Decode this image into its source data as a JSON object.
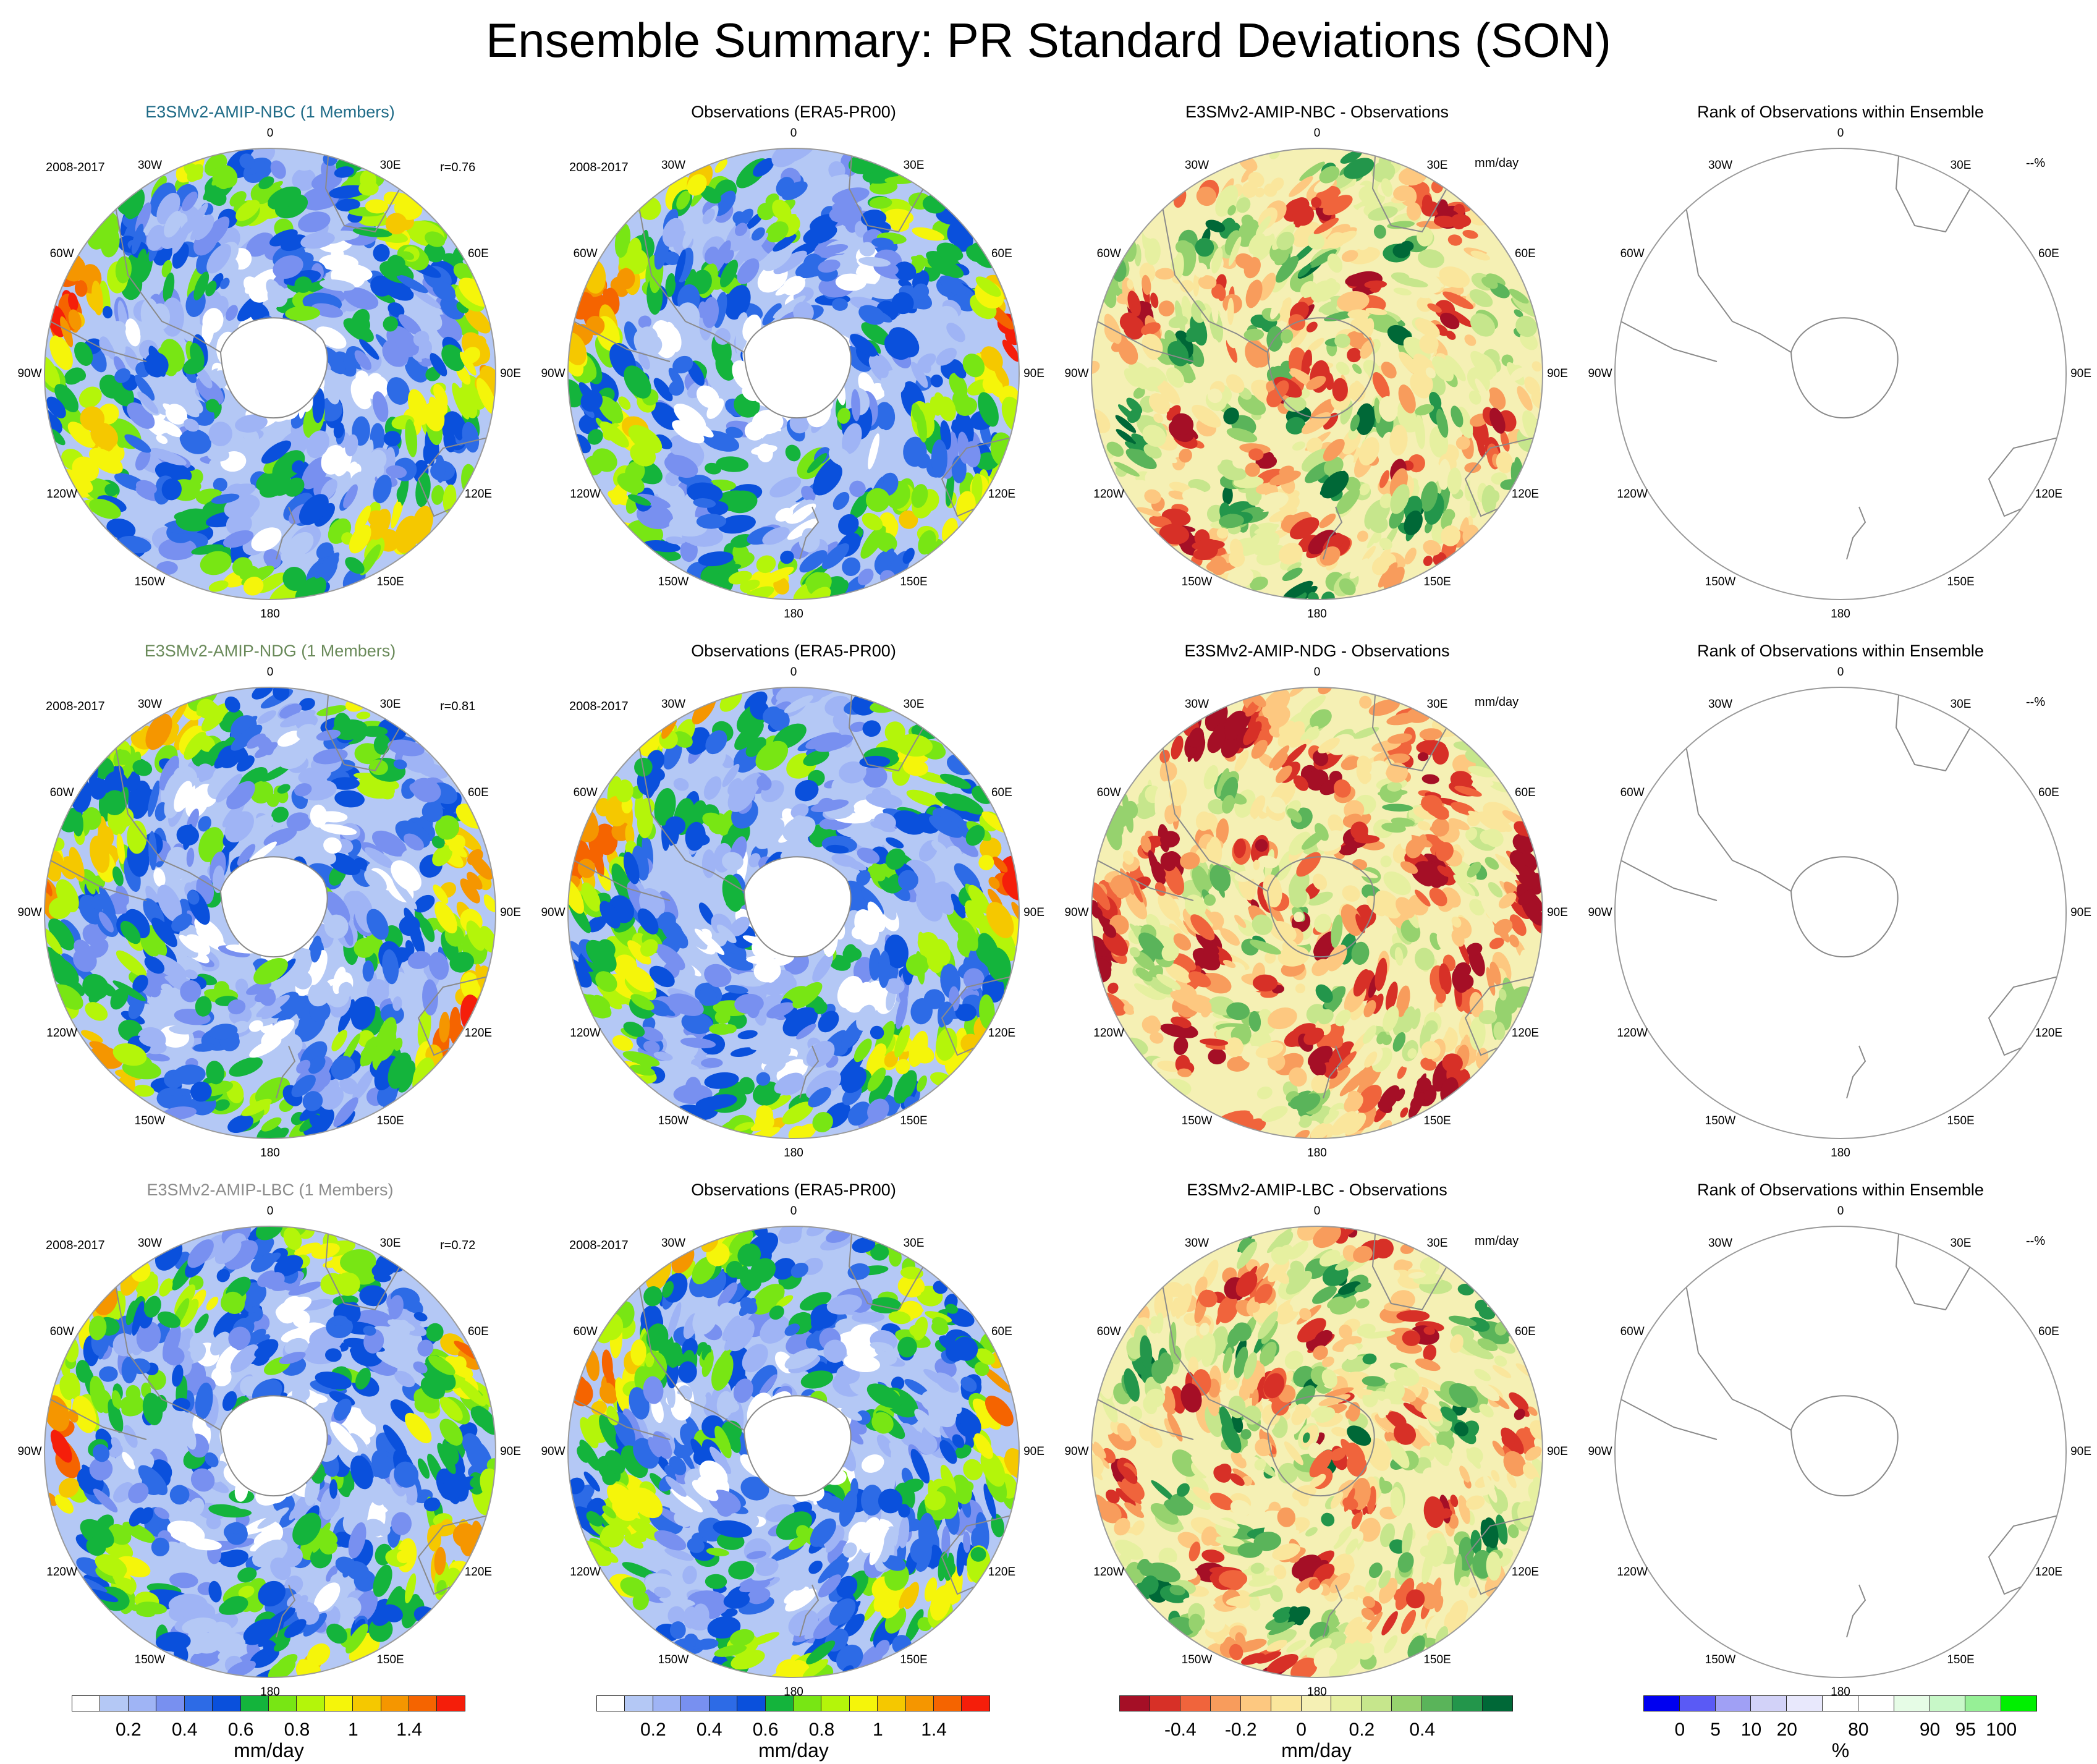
{
  "title": "Ensemble Summary: PR Standard Deviations (SON)",
  "longitude_labels": [
    "0",
    "30E",
    "60E",
    "90E",
    "120E",
    "150E",
    "180",
    "150W",
    "120W",
    "90W",
    "60W",
    "30W"
  ],
  "rows": [
    {
      "model": {
        "title": "E3SMv2-AMIP-NBC (1 Members)",
        "title_color": "#1f6b87",
        "period": "2008-2017",
        "corr": "r=0.76"
      },
      "obs": {
        "title": "Observations (ERA5-PR00)",
        "period": "2008-2017"
      },
      "diff": {
        "title": "E3SMv2-AMIP-NBC - Observations",
        "unit": "mm/day"
      },
      "rank": {
        "title": "Rank of Observations within Ensemble",
        "unit": "--%"
      }
    },
    {
      "model": {
        "title": "E3SMv2-AMIP-NDG (1 Members)",
        "title_color": "#6a8a5a",
        "period": "2008-2017",
        "corr": "r=0.81"
      },
      "obs": {
        "title": "Observations (ERA5-PR00)",
        "period": "2008-2017"
      },
      "diff": {
        "title": "E3SMv2-AMIP-NDG - Observations",
        "unit": "mm/day"
      },
      "rank": {
        "title": "Rank of Observations within Ensemble",
        "unit": "--%"
      }
    },
    {
      "model": {
        "title": "E3SMv2-AMIP-LBC (1 Members)",
        "title_color": "#8c8c8c",
        "period": "2008-2017",
        "corr": "r=0.72"
      },
      "obs": {
        "title": "Observations (ERA5-PR00)",
        "period": "2008-2017"
      },
      "diff": {
        "title": "E3SMv2-AMIP-LBC - Observations",
        "unit": "mm/day"
      },
      "rank": {
        "title": "Rank of Observations within Ensemble",
        "unit": "--%"
      }
    }
  ],
  "colorbars": {
    "std": {
      "unit": "mm/day",
      "colors": [
        "#ffffff",
        "#b4c8f5",
        "#9fb4f5",
        "#7890f0",
        "#2d6be6",
        "#0a50dc",
        "#14b43c",
        "#78e614",
        "#b4f50a",
        "#f5f50a",
        "#f5c800",
        "#f59600",
        "#f56400",
        "#f51e0a"
      ],
      "tick_labels": [
        "0.2",
        "0.4",
        "0.6",
        "0.8",
        "1",
        "1.4"
      ],
      "tick_box_index": [
        2,
        4,
        6,
        8,
        10,
        12
      ]
    },
    "diff": {
      "unit": "mm/day",
      "colors": [
        "#a50f26",
        "#d73027",
        "#f0643c",
        "#f89c5c",
        "#fdc880",
        "#fae69c",
        "#f5f0b4",
        "#e6f0a0",
        "#c6e68c",
        "#96d26e",
        "#5ab45a",
        "#23964b",
        "#006837"
      ],
      "tick_labels": [
        "-0.4",
        "-0.2",
        "0",
        "0.2",
        "0.4"
      ],
      "tick_box_index": [
        2,
        4,
        6,
        8,
        10
      ]
    },
    "rank": {
      "unit": "%",
      "colors": [
        "#0000f0",
        "#5a5af5",
        "#a0a0f5",
        "#d2d2f8",
        "#e8e8fc",
        "#ffffff",
        "#ffffff",
        "#e6fce6",
        "#c8f8c8",
        "#96f096",
        "#00f000"
      ],
      "tick_labels": [
        "0",
        "5",
        "10",
        "20",
        "80",
        "90",
        "95",
        "100"
      ],
      "tick_box_index": [
        1,
        2,
        3,
        4,
        6,
        8,
        9,
        10
      ]
    }
  }
}
